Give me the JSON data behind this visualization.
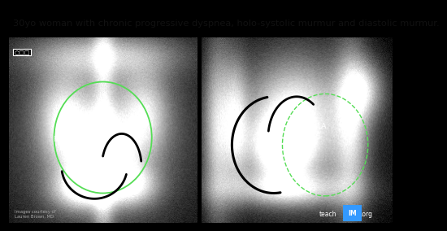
{
  "title": "30yo woman with chronic progressive dyspnea, holo-systolic murmur and diastolic murmur.",
  "title_fontsize": 8.2,
  "title_color": "#111111",
  "bg_color": "#000000",
  "credit_text": "Images courtesy of\nLauren Brown, MD",
  "brand_teach": "teach",
  "brand_im": "IM",
  "brand_org": ".org"
}
